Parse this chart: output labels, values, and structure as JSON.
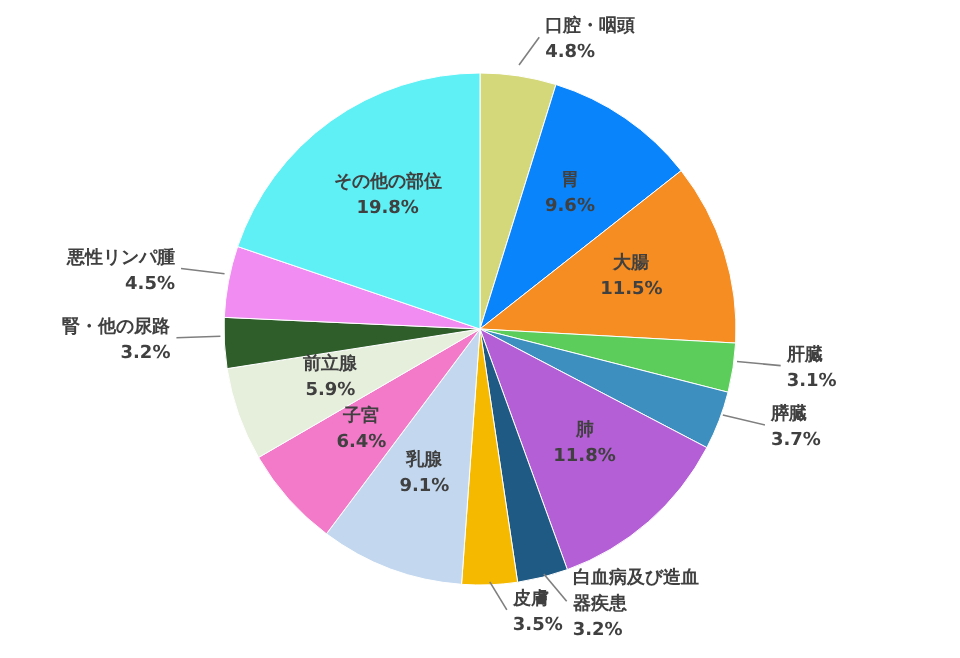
{
  "chart_data": {
    "type": "pie",
    "categories": [
      "口腔・咽頭",
      "胃",
      "大腸",
      "肝臓",
      "膵臓",
      "肺",
      "白血病及び造血器疾患",
      "皮膚",
      "乳腺",
      "子宮",
      "前立腺",
      "腎・他の尿路",
      "悪性リンパ腫",
      "その他の部位"
    ],
    "values": [
      4.8,
      9.6,
      11.5,
      3.1,
      3.7,
      11.8,
      3.2,
      3.5,
      9.1,
      6.4,
      5.9,
      3.2,
      4.5,
      19.8
    ],
    "value_labels": [
      "4.8%",
      "9.6%",
      "11.5%",
      "3.1%",
      "3.7%",
      "11.8%",
      "3.2%",
      "3.5%",
      "9.1%",
      "6.4%",
      "5.9%",
      "3.2%",
      "4.5%",
      "19.8%"
    ],
    "colors": [
      "#d5d87a",
      "#0a84fb",
      "#f58d22",
      "#5ccd5a",
      "#3d8fbf",
      "#b45fd6",
      "#1f5a85",
      "#f5b900",
      "#c3d8ef",
      "#f27ac8",
      "#e5efdc",
      "#2f5e2b",
      "#f08cf2",
      "#5ff0f6"
    ]
  }
}
